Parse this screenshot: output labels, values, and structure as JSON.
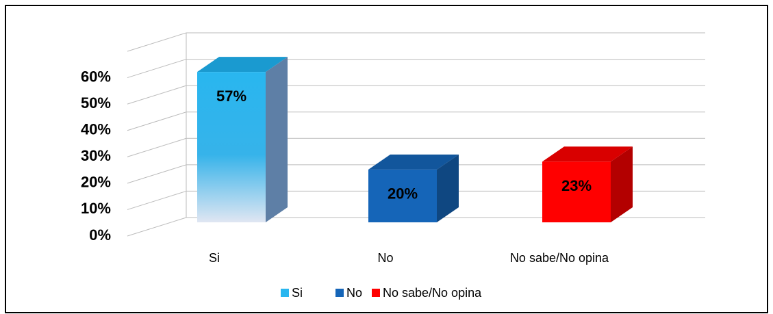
{
  "chart_data": {
    "type": "bar3d",
    "categories": [
      "Si",
      "No",
      "No sabe/No opina"
    ],
    "values": [
      57,
      20,
      23
    ],
    "value_labels": [
      "57%",
      "20%",
      "23%"
    ],
    "colors": [
      "#29b6ef",
      "#1565b8",
      "#ff0000"
    ],
    "ylim": [
      0,
      70
    ],
    "yticks": [
      {
        "value": 0,
        "label": "0%"
      },
      {
        "value": 10,
        "label": "10%"
      },
      {
        "value": 20,
        "label": "20%"
      },
      {
        "value": 30,
        "label": "30%"
      },
      {
        "value": 40,
        "label": "40%"
      },
      {
        "value": 50,
        "label": "50%"
      },
      {
        "value": 60,
        "label": "60%"
      }
    ],
    "grid": true,
    "legend": "bottom"
  }
}
